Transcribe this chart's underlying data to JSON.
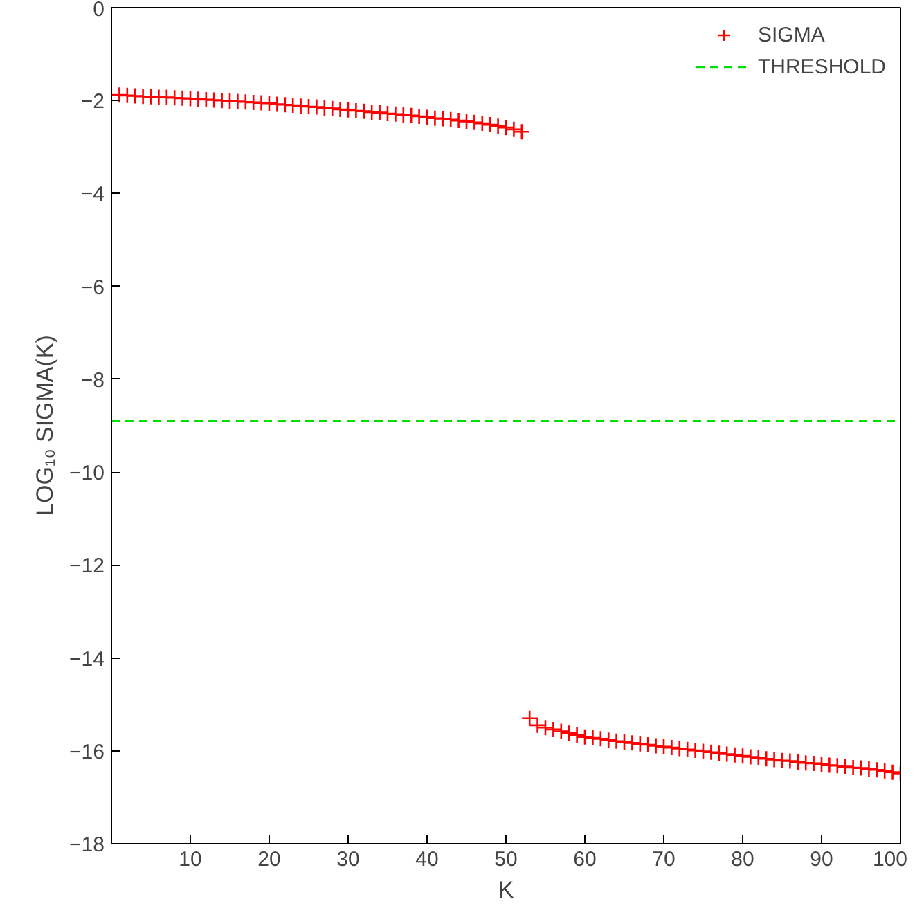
{
  "chart_data": {
    "type": "scatter",
    "xlabel": "K",
    "ylabel": "LOG₁₀ SIGMA(K)",
    "xlim": [
      0,
      100
    ],
    "xticks": [
      10,
      20,
      30,
      40,
      50,
      60,
      70,
      80,
      90,
      100
    ],
    "ylim": [
      -18,
      0
    ],
    "yticks": [
      -18,
      -16,
      -14,
      -12,
      -10,
      -8,
      -6,
      -4,
      -2,
      0
    ],
    "grid": false,
    "legend": "top right",
    "marker": "cross",
    "x": [
      1,
      2,
      3,
      4,
      5,
      6,
      7,
      8,
      9,
      10,
      11,
      12,
      13,
      14,
      15,
      16,
      17,
      18,
      19,
      20,
      21,
      22,
      23,
      24,
      25,
      26,
      27,
      28,
      29,
      30,
      31,
      32,
      33,
      34,
      35,
      36,
      37,
      38,
      39,
      40,
      41,
      42,
      43,
      44,
      45,
      46,
      47,
      48,
      49,
      50,
      51,
      52,
      53,
      54,
      55,
      56,
      57,
      58,
      59,
      60,
      61,
      62,
      63,
      64,
      65,
      66,
      67,
      68,
      69,
      70,
      71,
      72,
      73,
      74,
      75,
      76,
      77,
      78,
      79,
      80,
      81,
      82,
      83,
      84,
      85,
      86,
      87,
      88,
      89,
      90,
      91,
      92,
      93,
      94,
      95,
      96,
      97,
      98,
      99,
      100
    ],
    "series": [
      {
        "name": "SIGMA",
        "color": "#ff0000",
        "values": [
          -1.88,
          -1.89,
          -1.9,
          -1.91,
          -1.92,
          -1.93,
          -1.93,
          -1.94,
          -1.95,
          -1.96,
          -1.97,
          -1.98,
          -1.99,
          -2.0,
          -2.01,
          -2.02,
          -2.03,
          -2.04,
          -2.05,
          -2.06,
          -2.08,
          -2.09,
          -2.1,
          -2.12,
          -2.13,
          -2.14,
          -2.16,
          -2.17,
          -2.19,
          -2.2,
          -2.22,
          -2.23,
          -2.25,
          -2.26,
          -2.28,
          -2.29,
          -2.31,
          -2.32,
          -2.34,
          -2.36,
          -2.38,
          -2.39,
          -2.41,
          -2.43,
          -2.45,
          -2.47,
          -2.49,
          -2.52,
          -2.55,
          -2.58,
          -2.62,
          -2.67,
          -15.3,
          -15.45,
          -15.5,
          -15.54,
          -15.58,
          -15.62,
          -15.66,
          -15.7,
          -15.72,
          -15.74,
          -15.77,
          -15.79,
          -15.81,
          -15.83,
          -15.85,
          -15.87,
          -15.89,
          -15.91,
          -15.93,
          -15.95,
          -15.97,
          -15.99,
          -16.01,
          -16.03,
          -16.05,
          -16.07,
          -16.09,
          -16.11,
          -16.13,
          -16.15,
          -16.17,
          -16.19,
          -16.21,
          -16.22,
          -16.24,
          -16.26,
          -16.27,
          -16.29,
          -16.31,
          -16.32,
          -16.34,
          -16.36,
          -16.37,
          -16.39,
          -16.41,
          -16.43,
          -16.46,
          -16.5
        ]
      }
    ],
    "ref_lines": [
      {
        "axis": "y",
        "value": -8.9,
        "label": "THRESHOLD",
        "color": "#00dd00",
        "line_style": "dashed"
      }
    ]
  }
}
